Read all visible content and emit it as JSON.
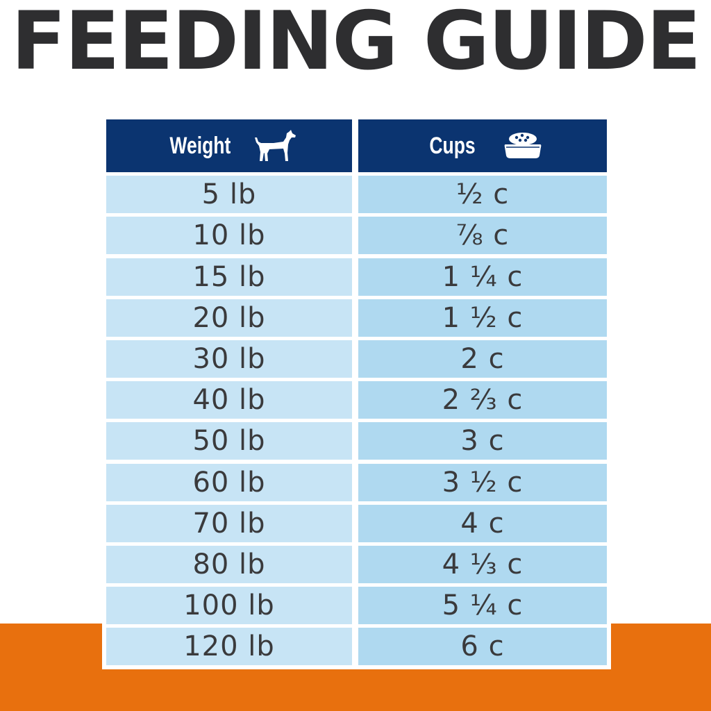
{
  "title": "FEEDING GUIDE",
  "colors": {
    "header_bg": "#0b3470",
    "weight_cell_bg": "#c7e4f5",
    "cups_cell_bg": "#afd9f0",
    "title_text": "#2e2e30",
    "orange_band": "#e8700e"
  },
  "table": {
    "headers": {
      "weight": "Weight",
      "weight_icon": "dog-icon",
      "cups": "Cups",
      "cups_icon": "food-bowl-icon"
    },
    "rows": [
      {
        "weight": "5 lb",
        "cups": "½ c"
      },
      {
        "weight": "10 lb",
        "cups": "⅞ c"
      },
      {
        "weight": "15 lb",
        "cups": "1 ¼ c"
      },
      {
        "weight": "20 lb",
        "cups": "1 ½ c"
      },
      {
        "weight": "30 lb",
        "cups": "2 c"
      },
      {
        "weight": "40 lb",
        "cups": "2 ⅔ c"
      },
      {
        "weight": "50 lb",
        "cups": "3 c"
      },
      {
        "weight": "60 lb",
        "cups": "3 ½ c"
      },
      {
        "weight": "70 lb",
        "cups": "4 c"
      },
      {
        "weight": "80 lb",
        "cups": "4 ⅓ c"
      },
      {
        "weight": "100 lb",
        "cups": "5 ¼ c"
      },
      {
        "weight": "120 lb",
        "cups": "6 c"
      }
    ]
  }
}
